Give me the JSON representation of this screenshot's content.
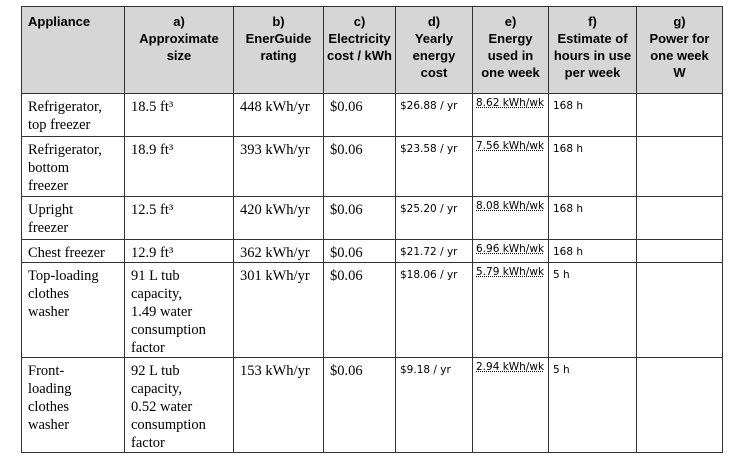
{
  "headers": [
    "Appliance",
    "a)\nApproximate\nsize",
    "b)\nEnerGuide\nrating",
    "c)\nElectricity\ncost / kWh",
    "d)\nYearly\nenergy\ncost",
    "e)\nEnergy\nused in\none week",
    "f)\nEstimate of\nhours in use\nper week",
    "g)\nPower for\none week\nW"
  ],
  "rows": [
    {
      "appliance": "Refrigerator,\ntop freezer",
      "size": "18.5 ft³",
      "rating": "448 kWh/yr",
      "cost": "$0.06",
      "yearly_cost": "$26.88 / yr",
      "energy_week": "8.62 kWh/wk",
      "hours": "168 h",
      "power": ""
    },
    {
      "appliance": "Refrigerator,\nbottom\nfreezer",
      "size": "18.9 ft³",
      "rating": "393 kWh/yr",
      "cost": "$0.06",
      "yearly_cost": "$23.58 / yr",
      "energy_week": "7.56 kWh/wk",
      "hours": "168 h",
      "power": ""
    },
    {
      "appliance": "Upright\nfreezer",
      "size": "12.5 ft³",
      "rating": "420 kWh/yr",
      "cost": "$0.06",
      "yearly_cost": "$25.20 / yr",
      "energy_week": "8.08 kWh/wk",
      "hours": "168 h",
      "power": ""
    },
    {
      "appliance": "Chest freezer",
      "size": "12.9 ft³",
      "rating": "362 kWh/yr",
      "cost": "$0.06",
      "yearly_cost": "$21.72 / yr",
      "energy_week": "6.96 kWh/wk",
      "hours": "168 h",
      "power": ""
    },
    {
      "appliance": "Top-loading\nclothes\nwasher",
      "size": "91 L tub\ncapacity,\n1.49 water\nconsumption\nfactor",
      "rating": "301 kWh/yr",
      "cost": "$0.06",
      "yearly_cost": "$18.06 / yr",
      "energy_week": "5.79 kWh/wk",
      "hours": "5 h",
      "power": ""
    },
    {
      "appliance": "Front-\nloading\nclothes\nwasher",
      "size": "92 L tub\ncapacity,\n0.52 water\nconsumption\nfactor",
      "rating": "153 kWh/yr",
      "cost": "$0.06",
      "yearly_cost": "$9.18 / yr",
      "energy_week": "2.94 kWh/wk",
      "hours": "5 h",
      "power": ""
    }
  ]
}
